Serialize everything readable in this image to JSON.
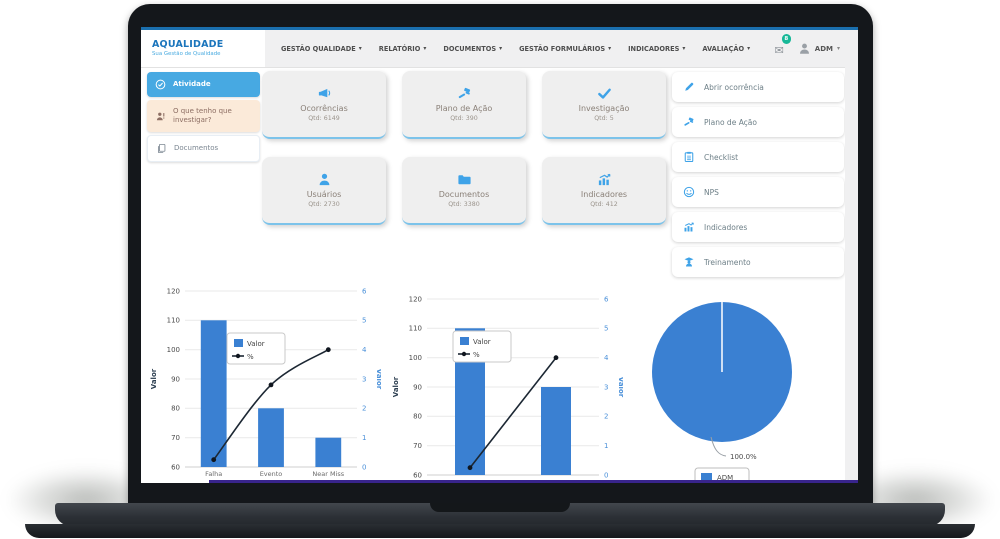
{
  "colors": {
    "topline": "#1a6fae",
    "accent": "#3a80d2",
    "icon_blue": "#3fa3e8",
    "active_blue": "#47a9e2",
    "logo_blue": "#1b75bc",
    "logo_light": "#4aabe0",
    "badge_green": "#17b898",
    "peach_bg": "#fbead9",
    "peach_text": "#8d6e63",
    "line_dark": "#1c2733",
    "footer_purple": "#38248c"
  },
  "icons": {
    "chevron-down": "▾",
    "envelope": "✉"
  },
  "navbar": {
    "logo": {
      "title": "AQUALIDADE",
      "subtitle": "Sua Gestão de Qualidade"
    },
    "menu": [
      {
        "label": "GESTÃO QUALIDADE"
      },
      {
        "label": "RELATÓRIO"
      },
      {
        "label": "DOCUMENTOS"
      },
      {
        "label": "GESTÃO FORMULÁRIOS"
      },
      {
        "label": "INDICADORES"
      },
      {
        "label": "AVALIAÇÃO"
      }
    ],
    "notifications": {
      "count": "8"
    },
    "user": {
      "name": "ADM"
    }
  },
  "sidebar": {
    "items": [
      {
        "label": "Atividade",
        "icon": "check-circle",
        "variant": "active"
      },
      {
        "label": "O que tenho que investigar?",
        "icon": "user-alert",
        "variant": "warning"
      },
      {
        "label": "Documentos",
        "icon": "docs-copy",
        "variant": "default"
      }
    ]
  },
  "summary_cards": [
    {
      "title": "Ocorrências",
      "qtd_label": "Qtd: 6149",
      "icon": "megaphone"
    },
    {
      "title": "Plano de Ação",
      "qtd_label": "Qtd: 390",
      "icon": "gavel"
    },
    {
      "title": "Investigação",
      "qtd_label": "Qtd: 5",
      "icon": "check"
    },
    {
      "title": "Usuários",
      "qtd_label": "Qtd: 2730",
      "icon": "user"
    },
    {
      "title": "Documentos",
      "qtd_label": "Qtd: 3380",
      "icon": "folder"
    },
    {
      "title": "Indicadores",
      "qtd_label": "Qtd: 412",
      "icon": "chart"
    }
  ],
  "quick_actions": [
    {
      "label": "Abrir ocorrência",
      "icon": "pencil"
    },
    {
      "label": "Plano de Ação",
      "icon": "gavel"
    },
    {
      "label": "Checklist",
      "icon": "checklist"
    },
    {
      "label": "NPS",
      "icon": "smiley"
    },
    {
      "label": "Indicadores",
      "icon": "chart"
    },
    {
      "label": "Treinamento",
      "icon": "student"
    }
  ],
  "chart_data": [
    {
      "type": "bar",
      "subtype": "pareto-combo",
      "categories": [
        "Falha",
        "Evento",
        "Near Miss"
      ],
      "series": [
        {
          "name": "Valor",
          "type": "bar",
          "axis": "left",
          "values": [
            110,
            80,
            70
          ]
        },
        {
          "name": "%",
          "type": "line",
          "axis": "right",
          "values": [
            0.25,
            2.8,
            4.0
          ]
        }
      ],
      "left_axis": {
        "title": "Valor",
        "min": 60,
        "max": 120,
        "step": 10
      },
      "right_axis": {
        "title": "Valor",
        "min": 0,
        "max": 6,
        "step": 1
      },
      "grid": true,
      "legend": {
        "entries": [
          "Valor",
          "%"
        ],
        "position": "inside-top-left"
      },
      "legend_pos": [
        78,
        50
      ]
    },
    {
      "type": "bar",
      "subtype": "pareto-combo",
      "categories": [
        "",
        ""
      ],
      "series": [
        {
          "name": "Valor",
          "type": "bar",
          "axis": "left",
          "values": [
            110,
            90
          ]
        },
        {
          "name": "%",
          "type": "line",
          "axis": "right",
          "values": [
            0.25,
            4.0
          ]
        }
      ],
      "left_axis": {
        "title": "Valor",
        "min": 60,
        "max": 120,
        "step": 10
      },
      "right_axis": {
        "title": "Valor",
        "min": 0,
        "max": 6,
        "step": 1
      },
      "grid": true,
      "legend": {
        "entries": [
          "Valor",
          "%"
        ],
        "position": "inside-top-left"
      },
      "legend_pos": [
        62,
        40
      ]
    },
    {
      "type": "pie",
      "slices": [
        {
          "label": "ADM",
          "value": 100.0,
          "display": "100.0%"
        }
      ],
      "legend": {
        "entries": [
          "ADM"
        ],
        "position": "bottom"
      }
    }
  ]
}
